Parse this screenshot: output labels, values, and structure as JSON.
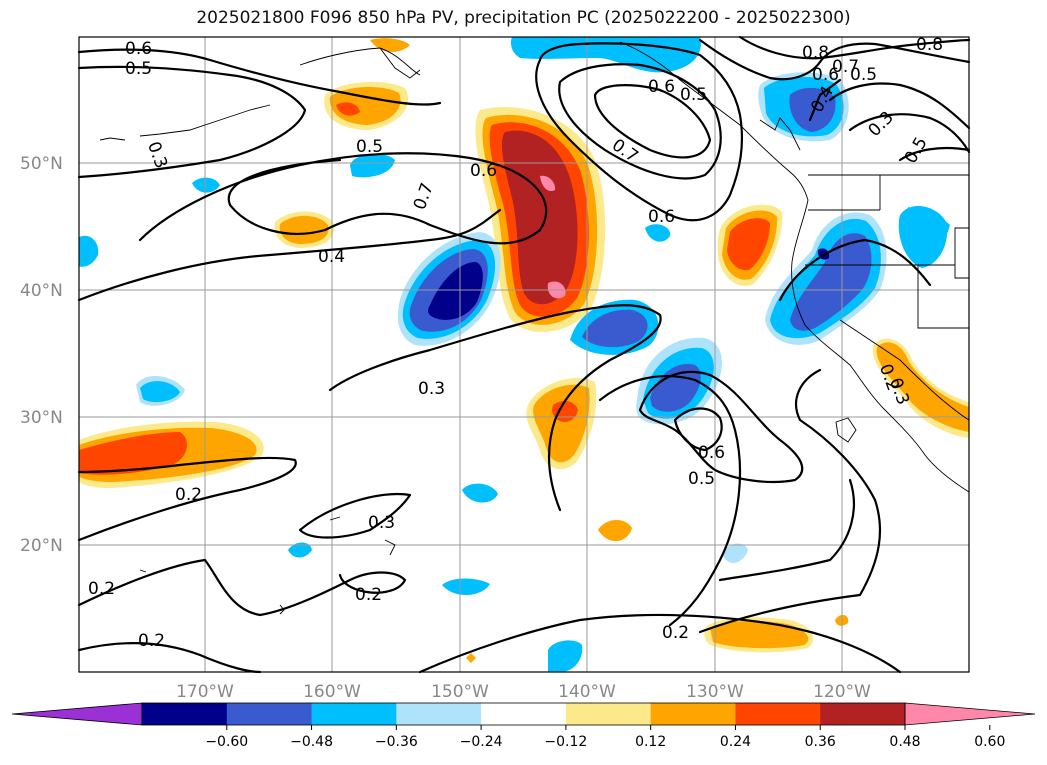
{
  "title": "2025021800 F096 850 hPa PV, precipitation PC (2025022200 - 2025022300)",
  "map": {
    "lat_labels": [
      "50°N",
      "40°N",
      "30°N",
      "20°N"
    ],
    "lon_labels": [
      "170°W",
      "160°W",
      "150°W",
      "140°W",
      "130°W",
      "120°W"
    ],
    "contour_labels": [
      "0.6",
      "0.5",
      "0.3",
      "0.5",
      "0.6",
      "0.7",
      "0.4",
      "0.3",
      "0.2",
      "0.3",
      "0.2",
      "0.2",
      "0.2",
      "0.2",
      "0.7",
      "0.6",
      "0.6",
      "0.5",
      "0.8",
      "0.7",
      "0.8",
      "0.6",
      "0.5",
      "0.4",
      "0.3",
      "0.5",
      "0.6",
      "0.5",
      "0.2",
      "0.3"
    ]
  },
  "colorbar": {
    "ticks": [
      "−0.60",
      "−0.48",
      "−0.36",
      "−0.24",
      "−0.12",
      "0.12",
      "0.24",
      "0.36",
      "0.48",
      "0.60"
    ],
    "colors": [
      "#9b30d6",
      "#00008b",
      "#3a5bd0",
      "#00bfff",
      "#afe3fb",
      "#ffffff",
      "#fce98a",
      "#ffa500",
      "#ff4500",
      "#b22222",
      "#ff88aa"
    ]
  }
}
